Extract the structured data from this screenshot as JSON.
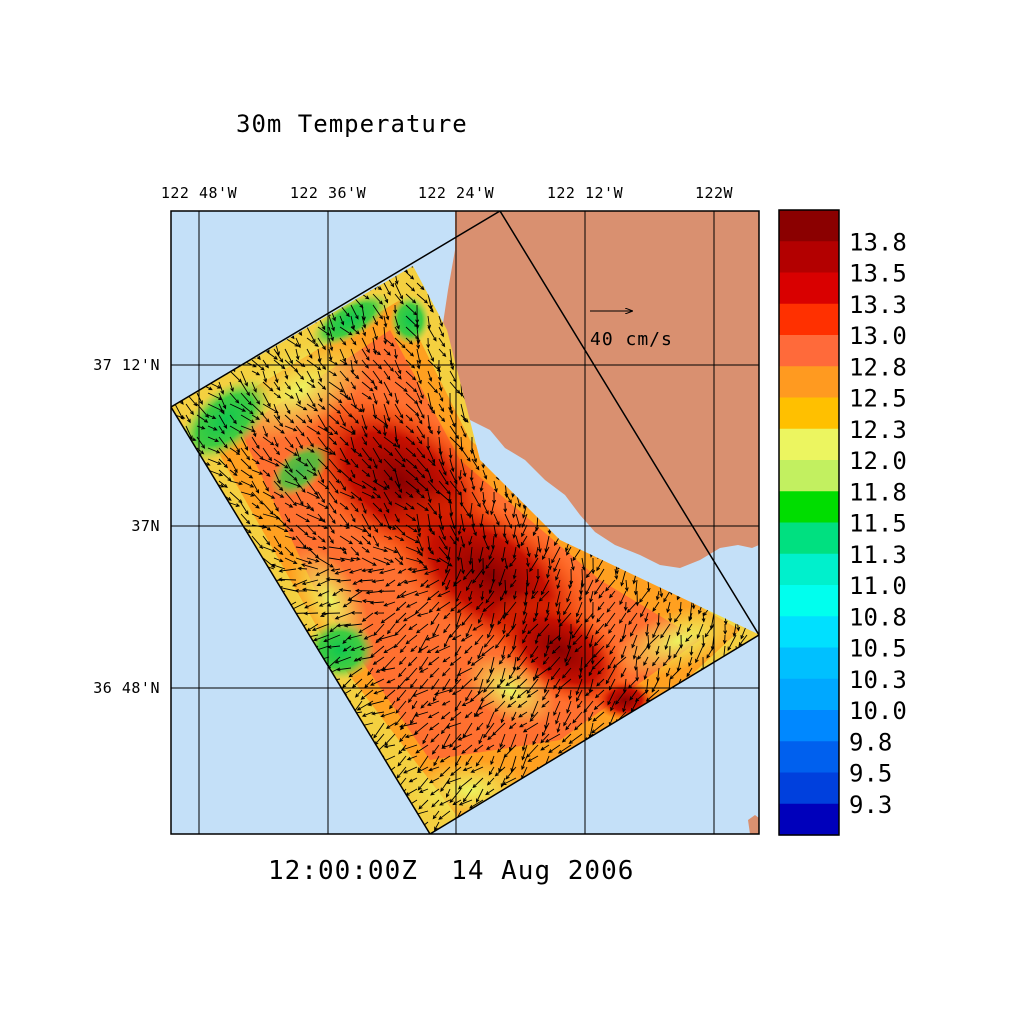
{
  "title": "30m Temperature",
  "timestamp": "12:00:00Z  14 Aug 2006",
  "lon_labels": [
    "122 48'W",
    "122 36'W",
    "122 24'W",
    "122 12'W",
    "122W"
  ],
  "lat_labels": [
    "37 12'N",
    "37N",
    "36 48'N"
  ],
  "reference_vector": {
    "label": "40 cm/s"
  },
  "colorbar": {
    "labels": [
      "13.8",
      "13.5",
      "13.3",
      "13.0",
      "12.8",
      "12.5",
      "12.3",
      "12.0",
      "11.8",
      "11.5",
      "11.3",
      "11.0",
      "10.8",
      "10.5",
      "10.3",
      "10.0",
      "9.8",
      "9.5",
      "9.3"
    ],
    "colors": [
      "#8b0000",
      "#b30000",
      "#d90000",
      "#ff3000",
      "#ff6a3a",
      "#ff9a20",
      "#ffc000",
      "#ecf560",
      "#c2f060",
      "#00dd00",
      "#00e080",
      "#00f0cc",
      "#00ffee",
      "#00e0ff",
      "#00c0ff",
      "#00a8ff",
      "#0088ff",
      "#0060ee",
      "#0040dd",
      "#0000bb"
    ]
  },
  "colors": {
    "ocean": "#c4e0f8",
    "land": "#d99070"
  }
}
